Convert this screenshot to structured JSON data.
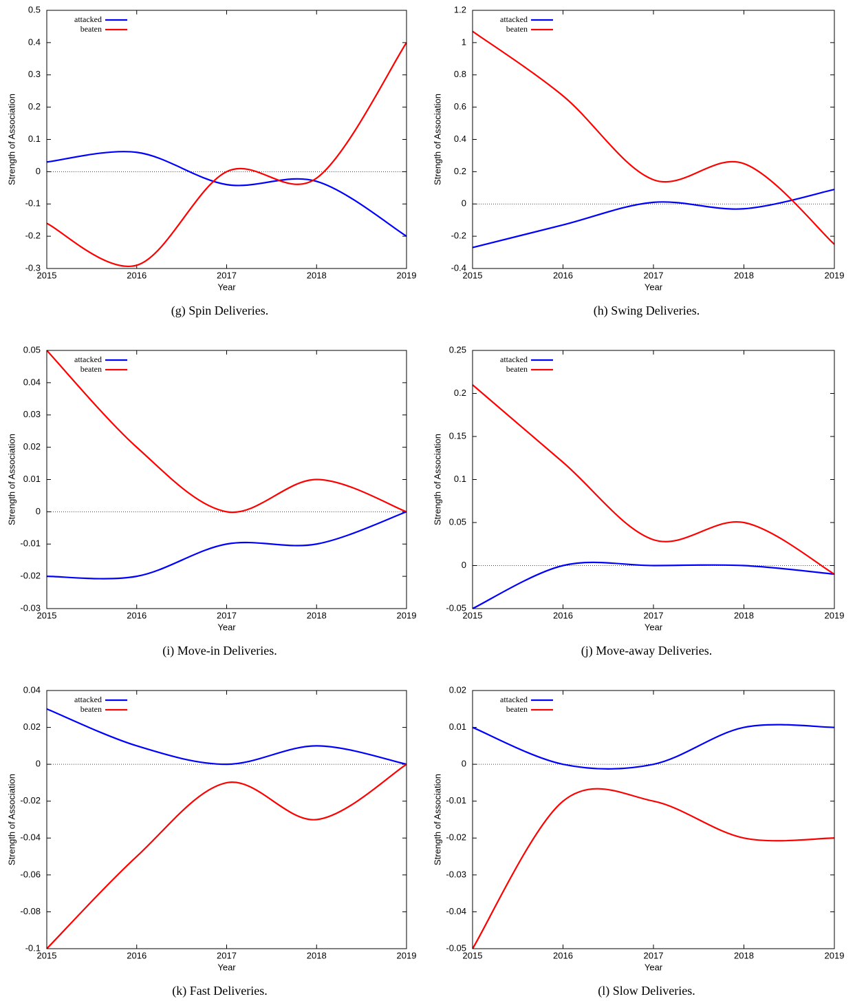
{
  "chart_data": [
    {
      "type": "line",
      "caption": "(g) Spin Deliveries.",
      "x_label": "Year",
      "y_label": "Strength of Association",
      "x": [
        2015,
        2016,
        2017,
        2018,
        2019
      ],
      "xlim": [
        2015,
        2019
      ],
      "xticks": [
        2015,
        2016,
        2017,
        2018,
        2019
      ],
      "ylim": [
        -0.3,
        0.5
      ],
      "yticks": [
        -0.3,
        -0.2,
        -0.1,
        0,
        0.1,
        0.2,
        0.3,
        0.4,
        0.5
      ],
      "zero_line": true,
      "legend": "top-left",
      "series": [
        {
          "name": "attacked",
          "color": "#0000ff",
          "values": [
            0.03,
            0.06,
            -0.04,
            -0.03,
            -0.2
          ]
        },
        {
          "name": "beaten",
          "color": "#ff0000",
          "values": [
            -0.16,
            -0.29,
            0.0,
            -0.02,
            0.4
          ]
        }
      ]
    },
    {
      "type": "line",
      "caption": "(h) Swing Deliveries.",
      "x_label": "Year",
      "y_label": "Strength of Association",
      "x": [
        2015,
        2016,
        2017,
        2018,
        2019
      ],
      "xlim": [
        2015,
        2019
      ],
      "xticks": [
        2015,
        2016,
        2017,
        2018,
        2019
      ],
      "ylim": [
        -0.4,
        1.2
      ],
      "yticks": [
        -0.4,
        -0.2,
        0,
        0.2,
        0.4,
        0.6,
        0.8,
        1,
        1.2
      ],
      "zero_line": true,
      "legend": "top-left",
      "series": [
        {
          "name": "attacked",
          "color": "#0000ff",
          "values": [
            -0.27,
            -0.13,
            0.01,
            -0.03,
            0.09
          ]
        },
        {
          "name": "beaten",
          "color": "#ff0000",
          "values": [
            1.07,
            0.67,
            0.15,
            0.25,
            -0.25
          ]
        }
      ]
    },
    {
      "type": "line",
      "caption": "(i) Move-in Deliveries.",
      "x_label": "Year",
      "y_label": "Strength of Association",
      "x": [
        2015,
        2016,
        2017,
        2018,
        2019
      ],
      "xlim": [
        2015,
        2019
      ],
      "xticks": [
        2015,
        2016,
        2017,
        2018,
        2019
      ],
      "ylim": [
        -0.03,
        0.05
      ],
      "yticks": [
        -0.03,
        -0.02,
        -0.01,
        0,
        0.01,
        0.02,
        0.03,
        0.04,
        0.05
      ],
      "zero_line": true,
      "legend": "top-left",
      "series": [
        {
          "name": "attacked",
          "color": "#0000ff",
          "values": [
            -0.02,
            -0.02,
            -0.01,
            -0.01,
            0
          ]
        },
        {
          "name": "beaten",
          "color": "#ff0000",
          "values": [
            0.05,
            0.02,
            0,
            0.01,
            0
          ]
        }
      ]
    },
    {
      "type": "line",
      "caption": "(j) Move-away Deliveries.",
      "x_label": "Year",
      "y_label": "Strength of Association",
      "x": [
        2015,
        2016,
        2017,
        2018,
        2019
      ],
      "xlim": [
        2015,
        2019
      ],
      "xticks": [
        2015,
        2016,
        2017,
        2018,
        2019
      ],
      "ylim": [
        -0.05,
        0.25
      ],
      "yticks": [
        -0.05,
        0,
        0.05,
        0.1,
        0.15,
        0.2,
        0.25
      ],
      "zero_line": true,
      "legend": "top-left",
      "series": [
        {
          "name": "attacked",
          "color": "#0000ff",
          "values": [
            -0.05,
            0,
            0,
            0,
            -0.01
          ]
        },
        {
          "name": "beaten",
          "color": "#ff0000",
          "values": [
            0.21,
            0.12,
            0.03,
            0.05,
            -0.01
          ]
        }
      ]
    },
    {
      "type": "line",
      "caption": "(k) Fast Deliveries.",
      "x_label": "Year",
      "y_label": "Strength of Association",
      "x": [
        2015,
        2016,
        2017,
        2018,
        2019
      ],
      "xlim": [
        2015,
        2019
      ],
      "xticks": [
        2015,
        2016,
        2017,
        2018,
        2019
      ],
      "ylim": [
        -0.1,
        0.04
      ],
      "yticks": [
        -0.1,
        -0.08,
        -0.06,
        -0.04,
        -0.02,
        0,
        0.02,
        0.04
      ],
      "zero_line": true,
      "legend": "top-left",
      "series": [
        {
          "name": "attacked",
          "color": "#0000ff",
          "values": [
            0.03,
            0.01,
            0,
            0.01,
            0
          ]
        },
        {
          "name": "beaten",
          "color": "#ff0000",
          "values": [
            -0.1,
            -0.05,
            -0.01,
            -0.03,
            0
          ]
        }
      ]
    },
    {
      "type": "line",
      "caption": "(l) Slow Deliveries.",
      "x_label": "Year",
      "y_label": "Strength of Association",
      "x": [
        2015,
        2016,
        2017,
        2018,
        2019
      ],
      "xlim": [
        2015,
        2019
      ],
      "xticks": [
        2015,
        2016,
        2017,
        2018,
        2019
      ],
      "ylim": [
        -0.05,
        0.02
      ],
      "yticks": [
        -0.05,
        -0.04,
        -0.03,
        -0.02,
        -0.01,
        0,
        0.01,
        0.02
      ],
      "zero_line": true,
      "legend": "top-left",
      "series": [
        {
          "name": "attacked",
          "color": "#0000ff",
          "values": [
            0.01,
            0,
            0,
            0.01,
            0.01
          ]
        },
        {
          "name": "beaten",
          "color": "#ff0000",
          "values": [
            -0.05,
            -0.01,
            -0.01,
            -0.02,
            -0.02
          ]
        }
      ]
    }
  ]
}
